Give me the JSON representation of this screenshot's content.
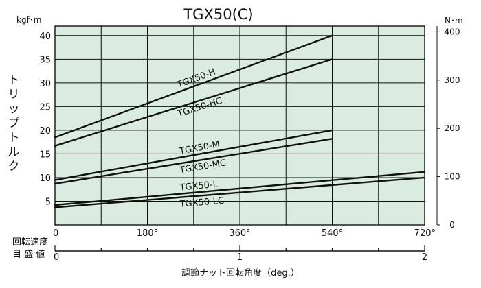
{
  "chart_data": {
    "type": "line",
    "title": "TGX50(C)",
    "ylabel": "トリップトルク",
    "y_unit_left": "kgf･m",
    "y_unit_right": "N･m",
    "x_angle_ticks": [
      "0",
      "180°",
      "360°",
      "540°",
      "720°"
    ],
    "x_turn_ticks": [
      "0",
      "1",
      "2"
    ],
    "x_turn_label": "回転速度\n目 盛 値",
    "xlabel": "調節ナット回転角度（deg.）",
    "xlim": [
      0,
      720
    ],
    "ylim": [
      0,
      42
    ],
    "y_ticks_left": [
      5,
      10,
      15,
      20,
      25,
      30,
      35,
      40
    ],
    "y_ticks_right": [
      0,
      100,
      200,
      300,
      400
    ],
    "grid": true,
    "series": [
      {
        "name": "TGX50-H",
        "x": [
          0,
          540
        ],
        "y": [
          18.5,
          40.0
        ]
      },
      {
        "name": "TGX50-HC",
        "x": [
          0,
          540
        ],
        "y": [
          16.7,
          35.0
        ]
      },
      {
        "name": "TGX50-M",
        "x": [
          0,
          540
        ],
        "y": [
          9.5,
          20.0
        ]
      },
      {
        "name": "TGX50-MC",
        "x": [
          0,
          540
        ],
        "y": [
          8.7,
          18.2
        ]
      },
      {
        "name": "TGX50-L",
        "x": [
          0,
          720
        ],
        "y": [
          4.2,
          11.2
        ]
      },
      {
        "name": "TGX50-LC",
        "x": [
          0,
          720
        ],
        "y": [
          3.7,
          10.0
        ]
      }
    ]
  },
  "colors": {
    "panel": "#d9ecdf",
    "ink": "#111111"
  }
}
